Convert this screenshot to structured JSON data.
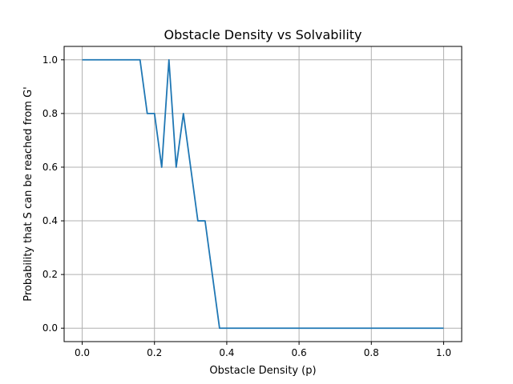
{
  "chart_data": {
    "type": "line",
    "title": "Obstacle Density vs Solvability",
    "xlabel": "Obstacle Density (p)",
    "ylabel": "Probability that S can be reached from G'",
    "xlim": [
      -0.05,
      1.05
    ],
    "ylim": [
      -0.05,
      1.05
    ],
    "grid": true,
    "x_ticks": [
      0.0,
      0.2,
      0.4,
      0.6,
      0.8,
      1.0
    ],
    "y_ticks": [
      0.0,
      0.2,
      0.4,
      0.6,
      0.8,
      1.0
    ],
    "x_tick_labels": [
      "0.0",
      "0.2",
      "0.4",
      "0.6",
      "0.8",
      "1.0"
    ],
    "y_tick_labels": [
      "0.0",
      "0.2",
      "0.4",
      "0.6",
      "0.8",
      "1.0"
    ],
    "series": [
      {
        "color": "#1f77b4",
        "x": [
          0.0,
          0.02,
          0.04,
          0.06,
          0.08,
          0.1,
          0.12,
          0.14,
          0.16,
          0.18,
          0.2,
          0.22,
          0.24,
          0.26,
          0.28,
          0.3,
          0.32,
          0.34,
          0.36,
          0.38,
          0.4,
          0.42,
          0.44,
          0.46,
          0.48,
          0.5,
          0.52,
          0.54,
          0.56,
          0.58,
          0.6,
          0.62,
          0.64,
          0.66,
          0.68,
          0.7,
          0.72,
          0.74,
          0.76,
          0.78,
          0.8,
          0.82,
          0.84,
          0.86,
          0.88,
          0.9,
          0.92,
          0.94,
          0.96,
          0.98,
          1.0
        ],
        "y": [
          1.0,
          1.0,
          1.0,
          1.0,
          1.0,
          1.0,
          1.0,
          1.0,
          1.0,
          0.8,
          0.8,
          0.6,
          1.0,
          0.6,
          0.8,
          0.6,
          0.4,
          0.4,
          0.2,
          0.0,
          0.0,
          0.0,
          0.0,
          0.0,
          0.0,
          0.0,
          0.0,
          0.0,
          0.0,
          0.0,
          0.0,
          0.0,
          0.0,
          0.0,
          0.0,
          0.0,
          0.0,
          0.0,
          0.0,
          0.0,
          0.0,
          0.0,
          0.0,
          0.0,
          0.0,
          0.0,
          0.0,
          0.0,
          0.0,
          0.0,
          0.0
        ]
      }
    ]
  }
}
